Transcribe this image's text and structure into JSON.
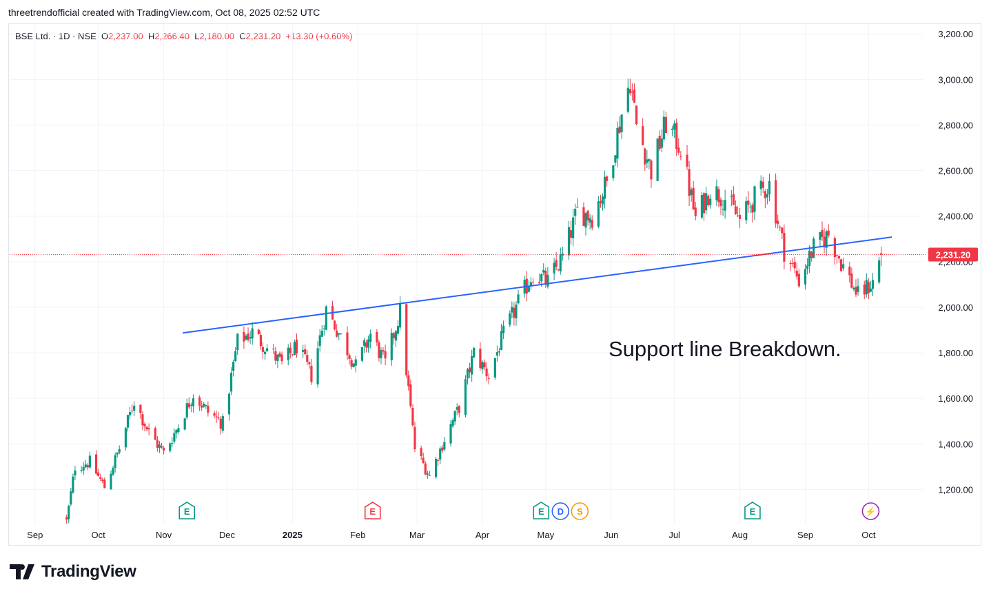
{
  "header": {
    "caption": "threetrendofficial created with TradingView.com, Oct 08, 2025 02:52 UTC"
  },
  "legend": {
    "symbol": "BSE Ltd. · 1D · NSE",
    "open_label": "O",
    "open": "2,237.00",
    "high_label": "H",
    "high": "2,266.40",
    "low_label": "L",
    "low": "2,180.00",
    "close_label": "C",
    "close": "2,231.20",
    "change": "+13.30 (+0.60%)"
  },
  "price_tag": "2,231.20",
  "annotation": "Support line Breakdown.",
  "footer": {
    "brand": "TradingView"
  },
  "colors": {
    "up": "#089981",
    "down": "#f23645",
    "trendline": "#2962ff",
    "grid": "#f0f3fa",
    "axis_text": "#131722"
  },
  "chart_data": {
    "type": "candlestick",
    "title": "BSE Ltd. · 1D · NSE",
    "ylim": [
      1050,
      3240
    ],
    "y_ticks": [
      "1,200.00",
      "1,400.00",
      "1,600.00",
      "1,800.00",
      "2,000.00",
      "2,200.00",
      "2,400.00",
      "2,600.00",
      "2,800.00",
      "3,000.00",
      "3,200.00"
    ],
    "y_tick_values": [
      1200,
      1400,
      1600,
      1800,
      2000,
      2200,
      2400,
      2600,
      2800,
      3000,
      3200
    ],
    "x_ticks": [
      "Sep",
      "Oct",
      "Nov",
      "Dec",
      "2025",
      "Feb",
      "Mar",
      "Apr",
      "May",
      "Jun",
      "Jul",
      "Aug",
      "Sep",
      "Oct"
    ],
    "x_tick_dates": [
      "2024-09-01",
      "2024-10-01",
      "2024-11-01",
      "2024-12-01",
      "2025-01-01",
      "2025-02-01",
      "2025-03-01",
      "2025-04-01",
      "2025-05-01",
      "2025-06-01",
      "2025-07-01",
      "2025-08-01",
      "2025-09-01",
      "2025-10-01"
    ],
    "x_tick_bold": [
      false,
      false,
      false,
      false,
      true,
      false,
      false,
      false,
      false,
      false,
      false,
      false,
      false,
      false
    ],
    "last_price": 2231.2,
    "trendline": {
      "from": {
        "date": "2024-11-10",
        "price": 1887
      },
      "to": {
        "date": "2025-10-12",
        "price": 2308
      }
    },
    "events": [
      {
        "date": "2024-11-12",
        "labels": [
          "E"
        ],
        "colors": [
          "#089981"
        ]
      },
      {
        "date": "2025-02-08",
        "labels": [
          "E"
        ],
        "colors": [
          "#f23645"
        ]
      },
      {
        "date": "2025-05-08",
        "labels": [
          "E",
          "D",
          "S"
        ],
        "colors": [
          "#089981",
          "#2962ff",
          "#ff9800"
        ]
      },
      {
        "date": "2025-08-07",
        "labels": [
          "E"
        ],
        "colors": [
          "#089981"
        ]
      },
      {
        "date": "2025-10-02",
        "labels": [
          "⚡"
        ],
        "colors": [
          "#9c27b0"
        ]
      }
    ],
    "anchors": [
      {
        "date": "2024-09-16",
        "close": 1060
      },
      {
        "date": "2024-09-20",
        "close": 1300
      },
      {
        "date": "2024-09-27",
        "close": 1320
      },
      {
        "date": "2024-10-04",
        "close": 1210
      },
      {
        "date": "2024-10-11",
        "close": 1380
      },
      {
        "date": "2024-10-18",
        "close": 1590
      },
      {
        "date": "2024-10-25",
        "close": 1450
      },
      {
        "date": "2024-11-01",
        "close": 1360
      },
      {
        "date": "2024-11-08",
        "close": 1480
      },
      {
        "date": "2024-11-15",
        "close": 1620
      },
      {
        "date": "2024-11-22",
        "close": 1540
      },
      {
        "date": "2024-11-29",
        "close": 1490
      },
      {
        "date": "2024-12-06",
        "close": 1850
      },
      {
        "date": "2024-12-13",
        "close": 1890
      },
      {
        "date": "2024-12-20",
        "close": 1820
      },
      {
        "date": "2024-12-27",
        "close": 1750
      },
      {
        "date": "2025-01-03",
        "close": 1830
      },
      {
        "date": "2025-01-10",
        "close": 1700
      },
      {
        "date": "2025-01-17",
        "close": 1990
      },
      {
        "date": "2025-01-24",
        "close": 1870
      },
      {
        "date": "2025-01-31",
        "close": 1740
      },
      {
        "date": "2025-02-07",
        "close": 1880
      },
      {
        "date": "2025-02-14",
        "close": 1750
      },
      {
        "date": "2025-02-21",
        "close": 1980
      },
      {
        "date": "2025-02-28",
        "close": 1380
      },
      {
        "date": "2025-03-07",
        "close": 1260
      },
      {
        "date": "2025-03-14",
        "close": 1420
      },
      {
        "date": "2025-03-21",
        "close": 1560
      },
      {
        "date": "2025-03-28",
        "close": 1800
      },
      {
        "date": "2025-04-04",
        "close": 1700
      },
      {
        "date": "2025-04-11",
        "close": 1880
      },
      {
        "date": "2025-04-18",
        "close": 2020
      },
      {
        "date": "2025-04-25",
        "close": 2150
      },
      {
        "date": "2025-05-02",
        "close": 2110
      },
      {
        "date": "2025-05-09",
        "close": 2220
      },
      {
        "date": "2025-05-16",
        "close": 2420
      },
      {
        "date": "2025-05-23",
        "close": 2400
      },
      {
        "date": "2025-05-30",
        "close": 2550
      },
      {
        "date": "2025-06-06",
        "close": 2850
      },
      {
        "date": "2025-06-10",
        "close": 3000
      },
      {
        "date": "2025-06-13",
        "close": 2800
      },
      {
        "date": "2025-06-20",
        "close": 2600
      },
      {
        "date": "2025-06-27",
        "close": 2810
      },
      {
        "date": "2025-07-04",
        "close": 2700
      },
      {
        "date": "2025-07-11",
        "close": 2390
      },
      {
        "date": "2025-07-18",
        "close": 2520
      },
      {
        "date": "2025-07-25",
        "close": 2480
      },
      {
        "date": "2025-08-01",
        "close": 2380
      },
      {
        "date": "2025-08-08",
        "close": 2480
      },
      {
        "date": "2025-08-15",
        "close": 2540
      },
      {
        "date": "2025-08-22",
        "close": 2250
      },
      {
        "date": "2025-08-29",
        "close": 2120
      },
      {
        "date": "2025-09-05",
        "close": 2260
      },
      {
        "date": "2025-09-12",
        "close": 2320
      },
      {
        "date": "2025-09-19",
        "close": 2180
      },
      {
        "date": "2025-09-26",
        "close": 2050
      },
      {
        "date": "2025-10-03",
        "close": 2110
      },
      {
        "date": "2025-10-07",
        "close": 2231
      }
    ]
  }
}
